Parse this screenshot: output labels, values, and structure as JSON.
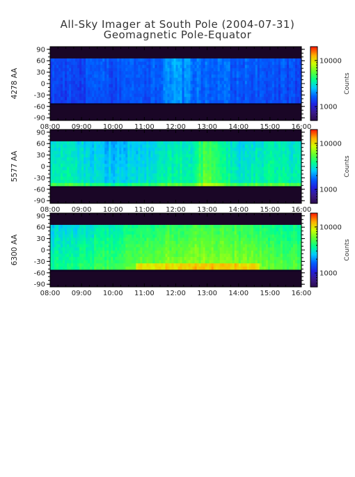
{
  "figure": {
    "title_line1": "All-Sky Imager at South Pole (2004-07-31)",
    "title_line2": "Geomagnetic Pole-Equator"
  },
  "colormap_stops": [
    "#2a0a4a",
    "#3a1a8a",
    "#2020e0",
    "#0060ff",
    "#00c8ff",
    "#00ff90",
    "#60ff30",
    "#d0ff00",
    "#ffb000",
    "#ff2000"
  ],
  "chart_data": [
    {
      "type": "heatmap",
      "name": "4278 AA",
      "ylabel": "4278 AA",
      "x_ticks": [
        "08:00",
        "09:00",
        "10:00",
        "11:00",
        "12:00",
        "13:00",
        "14:00",
        "15:00",
        "16:00"
      ],
      "y_ticks": [
        "90",
        "60",
        "30",
        "0",
        "-30",
        "-60",
        "-90"
      ],
      "ylim": [
        -97,
        97
      ],
      "xlim": [
        "08:00",
        "16:00"
      ],
      "data_band_lat": [
        -52,
        66
      ],
      "colorbar": {
        "label": "Counts",
        "ticks": [
          "10000",
          "1000"
        ],
        "scale": "log",
        "range": [
          500,
          20000
        ]
      },
      "level_profile": [
        0.3,
        0.3,
        0.3,
        0.31,
        0.31,
        0.32,
        0.32,
        0.35,
        0.4,
        0.37,
        0.34,
        0.34,
        0.33,
        0.32,
        0.31,
        0.31,
        0.3
      ]
    },
    {
      "type": "heatmap",
      "name": "5577 AA",
      "ylabel": "5577 AA",
      "x_ticks": [
        "08:00",
        "09:00",
        "10:00",
        "11:00",
        "12:00",
        "13:00",
        "14:00",
        "15:00",
        "16:00"
      ],
      "y_ticks": [
        "90",
        "60",
        "30",
        "0",
        "-30",
        "-60",
        "-90"
      ],
      "ylim": [
        -97,
        97
      ],
      "xlim": [
        "08:00",
        "16:00"
      ],
      "data_band_lat": [
        -52,
        66
      ],
      "colorbar": {
        "label": "Counts",
        "ticks": [
          "10000",
          "1000"
        ],
        "scale": "log",
        "range": [
          500,
          20000
        ]
      },
      "level_profile": [
        0.48,
        0.5,
        0.47,
        0.44,
        0.42,
        0.44,
        0.46,
        0.49,
        0.52,
        0.5,
        0.64,
        0.55,
        0.47,
        0.49,
        0.51,
        0.5,
        0.49
      ]
    },
    {
      "type": "heatmap",
      "name": "6300 AA",
      "ylabel": "6300 AA",
      "x_ticks": [
        "08:00",
        "09:00",
        "10:00",
        "11:00",
        "12:00",
        "13:00",
        "14:00",
        "15:00",
        "16:00"
      ],
      "y_ticks": [
        "90",
        "60",
        "30",
        "0",
        "-30",
        "-60",
        "-90"
      ],
      "ylim": [
        -97,
        97
      ],
      "xlim": [
        "08:00",
        "16:00"
      ],
      "data_band_lat": [
        -52,
        66
      ],
      "colorbar": {
        "label": "Counts",
        "ticks": [
          "10000",
          "1000"
        ],
        "scale": "log",
        "range": [
          500,
          20000
        ]
      },
      "level_profile": [
        0.46,
        0.47,
        0.49,
        0.51,
        0.53,
        0.55,
        0.57,
        0.59,
        0.61,
        0.62,
        0.63,
        0.62,
        0.61,
        0.6,
        0.58,
        0.56,
        0.55
      ]
    }
  ]
}
